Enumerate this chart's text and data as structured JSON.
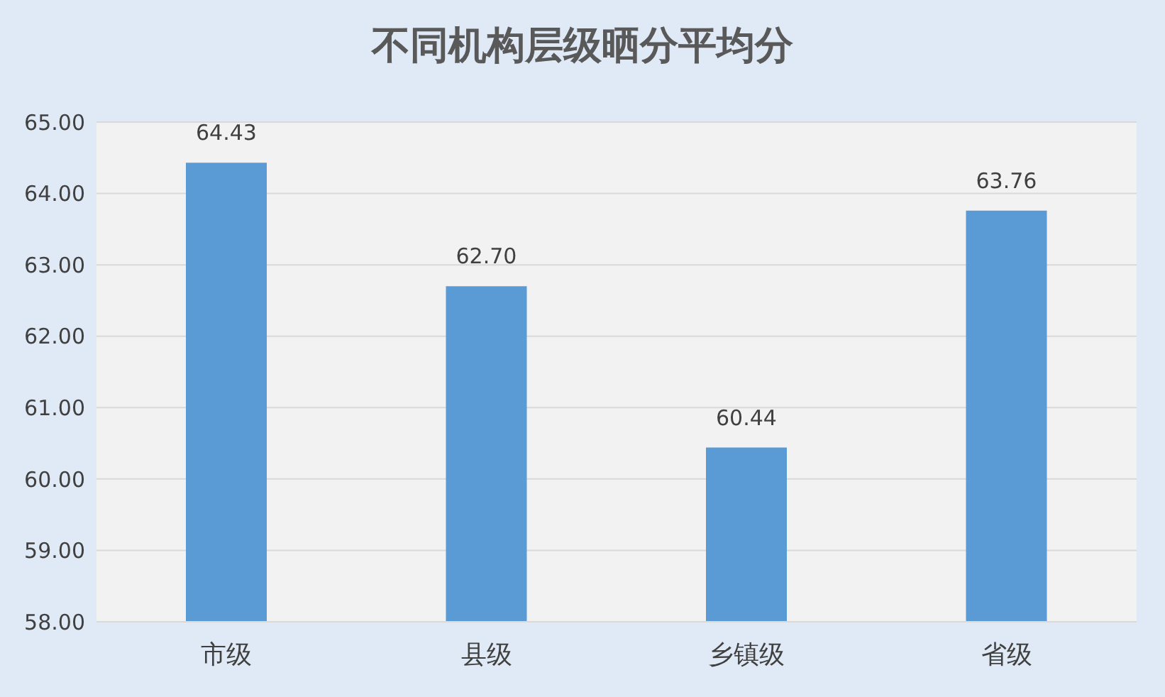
{
  "chart_data": {
    "type": "bar",
    "title": "不同机构层级晒分平均分",
    "categories": [
      "市级",
      "县级",
      "乡镇级",
      "省级"
    ],
    "values": [
      64.43,
      62.7,
      60.44,
      63.76
    ],
    "value_labels": [
      "64.43",
      "62.70",
      "60.44",
      "63.76"
    ],
    "color": "#5b9bd5",
    "ylim": [
      58,
      65
    ],
    "yticks": [
      {
        "value": 58,
        "label": "58.00"
      },
      {
        "value": 59,
        "label": "59.00"
      },
      {
        "value": 60,
        "label": "60.00"
      },
      {
        "value": 61,
        "label": "61.00"
      },
      {
        "value": 62,
        "label": "62.00"
      },
      {
        "value": 63,
        "label": "63.00"
      },
      {
        "value": 64,
        "label": "64.00"
      },
      {
        "value": 65,
        "label": "65.00"
      }
    ],
    "grid": "y"
  }
}
